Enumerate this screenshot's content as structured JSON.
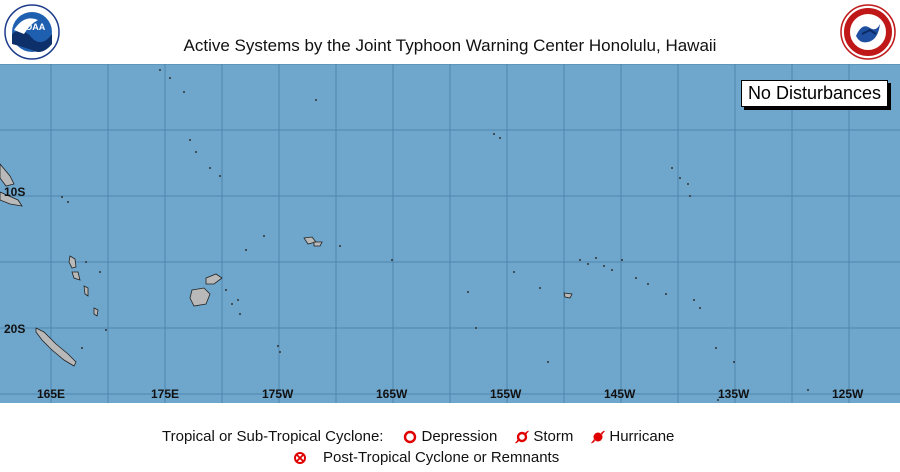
{
  "header": {
    "title": "Active Systems by the Joint Typhoon Warning Center  Honolulu, Hawaii",
    "left_logo": {
      "name": "noaa-logo",
      "text": "NOAA"
    },
    "right_logo": {
      "name": "nws-logo",
      "text": "NATIONAL WEATHER SERVICE"
    }
  },
  "map": {
    "ocean_color": "#6fa6cc",
    "land_color": "#b9b9b9",
    "status": "No Disturbances",
    "lat_labels": [
      "10S",
      "20S"
    ],
    "lon_labels": [
      "165E",
      "175E",
      "175W",
      "165W",
      "155W",
      "145W",
      "135W",
      "125W"
    ]
  },
  "legend": {
    "row1_label": "Tropical or Sub-Tropical Cyclone:",
    "depression": "Depression",
    "storm": "Storm",
    "hurricane": "Hurricane",
    "post_tropical": "Post-Tropical Cyclone or Remnants",
    "symbol_color": "#e00000"
  }
}
